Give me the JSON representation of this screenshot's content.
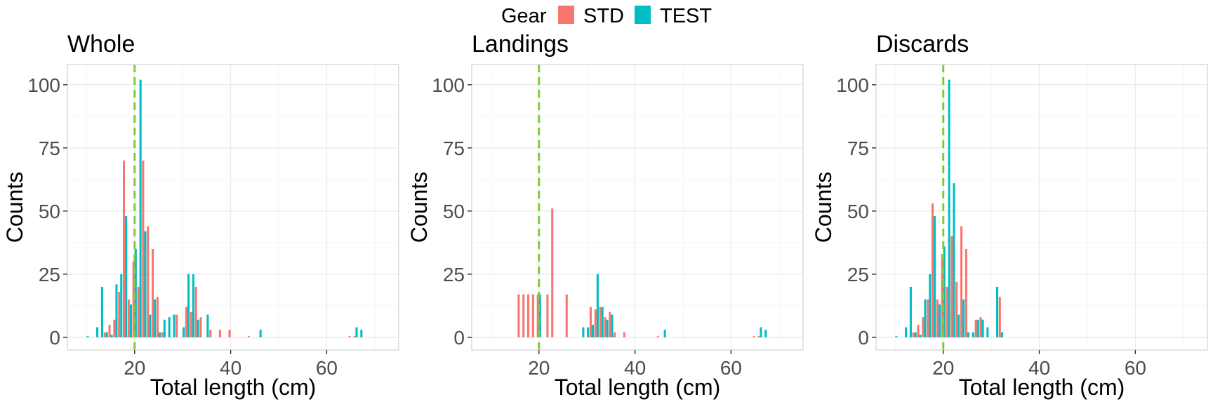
{
  "legend": {
    "title": "Gear",
    "items": [
      {
        "label": "STD",
        "color": "#F8766D"
      },
      {
        "label": "TEST",
        "color": "#00BFC4"
      }
    ]
  },
  "colors": {
    "STD": "#F8766D",
    "TEST": "#00BFC4",
    "reference_line": "#7CCD32",
    "grid_major": "#ebebeb",
    "grid_minor": "#f5f5f5",
    "panel_border": "#d9d9d9"
  },
  "chart_data": [
    {
      "type": "bar",
      "title": "Whole",
      "xlabel": "Total length (cm)",
      "ylabel": "Counts",
      "xlim": [
        6,
        75
      ],
      "ylim": [
        -5,
        108
      ],
      "xticks": [
        20,
        40,
        60
      ],
      "yticks": [
        0,
        25,
        50,
        75,
        100
      ],
      "grid": true,
      "vline": 20,
      "series": [
        {
          "name": "STD",
          "x": [
            14,
            15,
            16,
            17,
            18,
            19,
            20,
            21,
            22,
            23,
            24,
            25,
            26,
            29,
            31,
            32,
            33,
            34,
            36,
            38,
            40,
            44,
            65,
            66
          ],
          "values": [
            2,
            5,
            7,
            18,
            70,
            15,
            30,
            20,
            70,
            44,
            35,
            16,
            2,
            9,
            12,
            10,
            20,
            8,
            3,
            3,
            3,
            0.5,
            0.5,
            0.5
          ]
        },
        {
          "name": "TEST",
          "x": [
            10,
            12,
            13,
            14,
            15,
            16,
            17,
            18,
            19,
            20,
            21,
            22,
            23,
            24,
            25,
            26,
            27,
            28,
            30,
            31,
            32,
            33,
            35,
            46,
            66,
            67
          ],
          "values": [
            0.5,
            4,
            20,
            2,
            1,
            21,
            25,
            48,
            13,
            35,
            102,
            42,
            9,
            15,
            2,
            7,
            8,
            9,
            4,
            25,
            25,
            7,
            9,
            3,
            4,
            3
          ]
        }
      ]
    },
    {
      "type": "bar",
      "title": "Landings",
      "xlabel": "Total length (cm)",
      "ylabel": "Counts",
      "xlim": [
        6,
        75
      ],
      "ylim": [
        -5,
        108
      ],
      "xticks": [
        20,
        40,
        60
      ],
      "yticks": [
        0,
        25,
        50,
        75,
        100
      ],
      "grid": true,
      "vline": 20,
      "series": [
        {
          "name": "STD",
          "x": [
            16,
            17,
            18,
            19,
            20,
            22,
            23,
            26,
            31,
            32,
            33,
            34,
            35,
            36,
            38,
            45,
            65,
            66
          ],
          "values": [
            17,
            17,
            17,
            17,
            17,
            17,
            51,
            17,
            12,
            11,
            12,
            8,
            10,
            2,
            2,
            0.5,
            0.5,
            0.5
          ]
        },
        {
          "name": "TEST",
          "x": [
            20,
            29,
            30,
            31,
            32,
            33,
            34,
            35,
            46,
            66,
            67
          ],
          "values": [
            17,
            4,
            4,
            5,
            25,
            12,
            7,
            9,
            3,
            4,
            3
          ]
        }
      ]
    },
    {
      "type": "bar",
      "title": "Discards",
      "xlabel": "Total length (cm)",
      "ylabel": "Counts",
      "xlim": [
        6,
        75
      ],
      "ylim": [
        -5,
        108
      ],
      "xticks": [
        20,
        40,
        60
      ],
      "yticks": [
        0,
        25,
        50,
        75,
        100
      ],
      "grid": true,
      "vline": 20,
      "series": [
        {
          "name": "STD",
          "x": [
            14,
            15,
            16,
            17,
            18,
            19,
            20,
            21,
            22,
            23,
            24,
            25,
            27,
            28,
            32
          ],
          "values": [
            2,
            5,
            8,
            15,
            53,
            15,
            33,
            20,
            40,
            22,
            44,
            35,
            7,
            8,
            16
          ]
        },
        {
          "name": "TEST",
          "x": [
            10,
            12,
            13,
            14,
            15,
            16,
            17,
            18,
            19,
            20,
            21,
            22,
            23,
            24,
            25,
            26,
            27,
            28,
            29,
            31,
            32
          ],
          "values": [
            0.5,
            4,
            20,
            2,
            1,
            15,
            25,
            48,
            13,
            36,
            102,
            61,
            9,
            15,
            2,
            2,
            7,
            7,
            4,
            20,
            2
          ]
        }
      ]
    }
  ]
}
